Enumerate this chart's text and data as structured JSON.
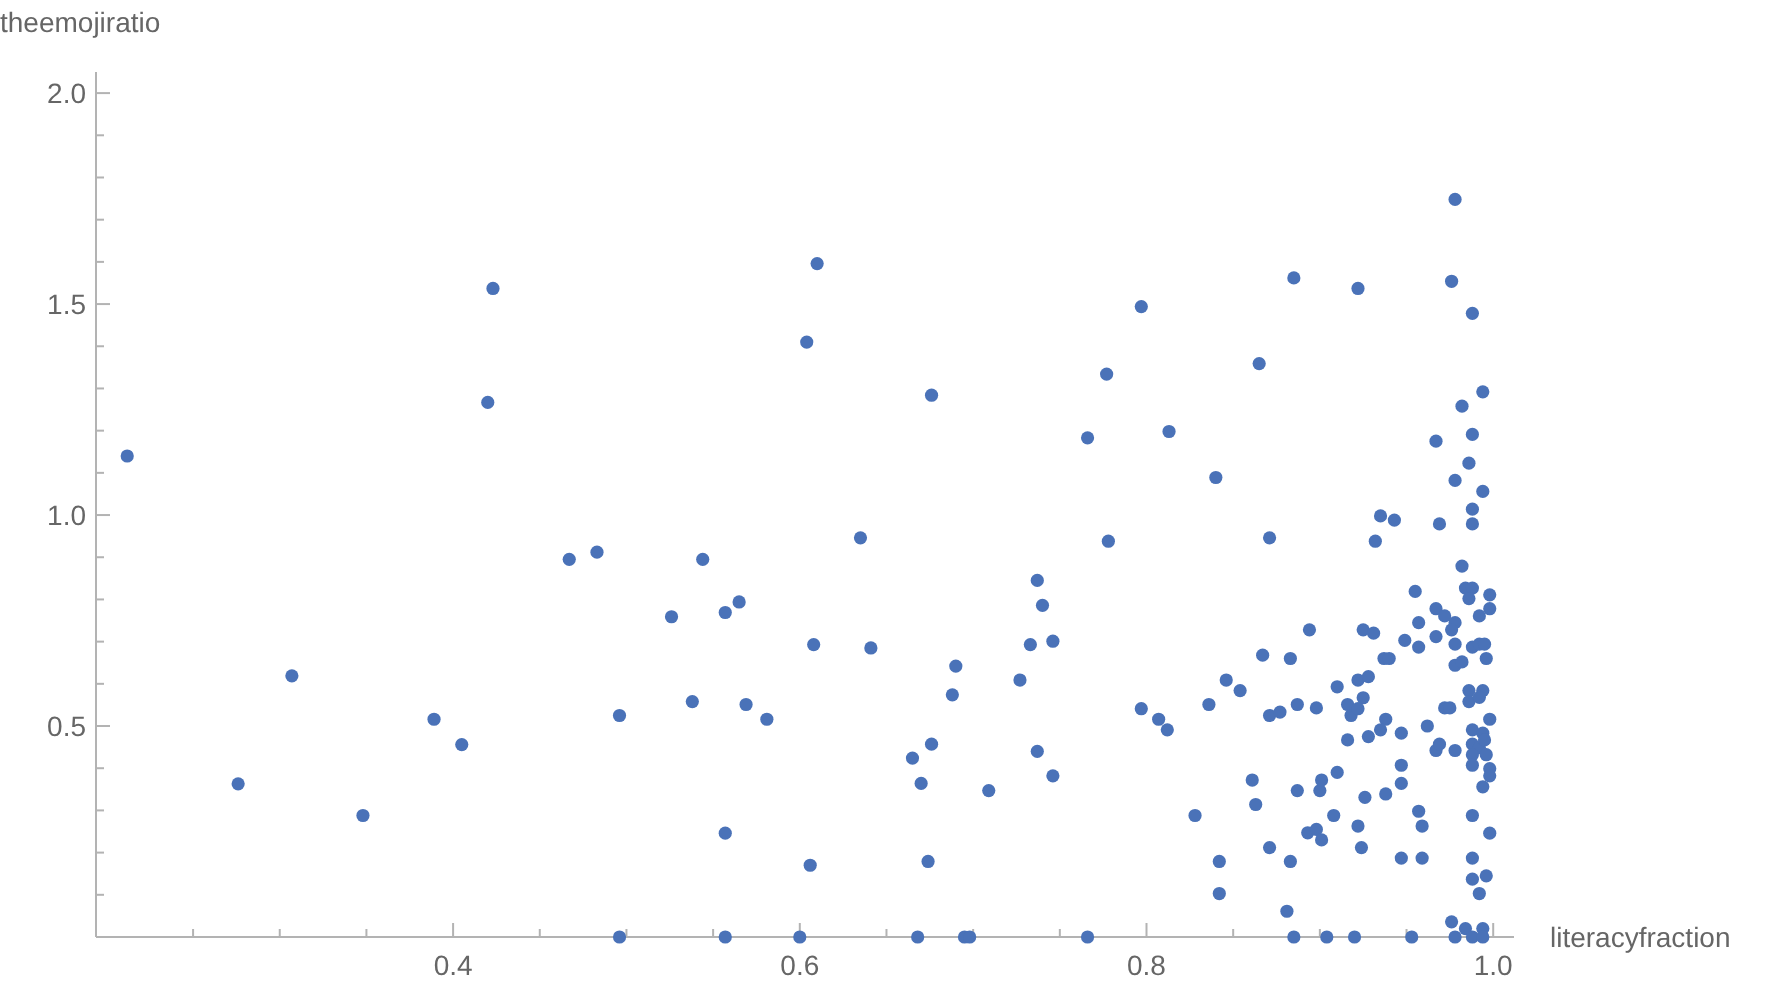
{
  "chart_data": {
    "type": "scatter",
    "xlabel": "literacyfraction",
    "ylabel": "theemojiratio",
    "marker": "circle",
    "grid": false,
    "xlim": [
      0.194,
      1.012
    ],
    "ylim": [
      0,
      2.05
    ],
    "xticks": [
      {
        "value": 0.25,
        "label": null
      },
      {
        "value": 0.3,
        "label": null
      },
      {
        "value": 0.35,
        "label": null
      },
      0.4,
      {
        "value": 0.45,
        "label": null
      },
      {
        "value": 0.5,
        "label": null
      },
      {
        "value": 0.55,
        "label": null
      },
      0.6,
      {
        "value": 0.65,
        "label": null
      },
      {
        "value": 0.7,
        "label": null
      },
      {
        "value": 0.75,
        "label": null
      },
      0.8,
      {
        "value": 0.85,
        "label": null
      },
      {
        "value": 0.9,
        "label": null
      },
      {
        "value": 0.95,
        "label": null
      },
      {
        "value": 1.0,
        "label": "1.0"
      }
    ],
    "yticks": [
      {
        "value": 0.1,
        "label": null
      },
      {
        "value": 0.2,
        "label": null
      },
      {
        "value": 0.3,
        "label": null
      },
      {
        "value": 0.4,
        "label": null
      },
      0.5,
      {
        "value": 0.6,
        "label": null
      },
      {
        "value": 0.7,
        "label": null
      },
      {
        "value": 0.8,
        "label": null
      },
      {
        "value": 0.9,
        "label": null
      },
      {
        "value": 1.0,
        "label": "1.0"
      },
      {
        "value": 1.1,
        "label": null
      },
      {
        "value": 1.2,
        "label": null
      },
      {
        "value": 1.3,
        "label": null
      },
      {
        "value": 1.4,
        "label": null
      },
      1.5,
      {
        "value": 1.6,
        "label": null
      },
      {
        "value": 1.7,
        "label": null
      },
      {
        "value": 1.8,
        "label": null
      },
      {
        "value": 1.9,
        "label": null
      },
      {
        "value": 2.0,
        "label": "2.0"
      }
    ],
    "series": [
      {
        "color": "#4a72b8",
        "x": [
          0.212,
          0.276,
          0.307,
          0.348,
          0.389,
          0.405,
          0.42,
          0.423,
          0.467,
          0.483,
          0.496,
          0.496,
          0.526,
          0.61,
          0.604,
          0.676,
          0.635,
          0.544,
          0.557,
          0.565,
          0.608,
          0.641,
          0.538,
          0.569,
          0.581,
          0.557,
          0.606,
          0.557,
          0.6,
          0.668,
          0.695,
          0.698,
          0.766,
          0.69,
          0.688,
          0.665,
          0.676,
          0.67,
          0.674,
          0.709,
          0.727,
          0.733,
          0.737,
          0.74,
          0.746,
          0.737,
          0.746,
          0.766,
          0.777,
          0.778,
          0.797,
          0.813,
          0.797,
          0.807,
          0.812,
          0.978,
          0.885,
          0.922,
          0.976,
          0.988,
          0.865,
          0.994,
          0.982,
          0.988,
          0.967,
          0.84,
          0.986,
          0.978,
          0.994,
          0.988,
          0.969,
          0.988,
          0.935,
          0.943,
          0.871,
          0.932,
          0.982,
          0.955,
          0.984,
          0.988,
          0.998,
          0.998,
          0.967,
          0.972,
          0.978,
          0.976,
          0.957,
          0.992,
          0.986,
          0.894,
          0.925,
          0.931,
          0.949,
          0.967,
          0.957,
          0.978,
          0.988,
          0.992,
          0.995,
          0.867,
          0.883,
          0.937,
          0.94,
          0.978,
          0.982,
          0.996,
          0.846,
          0.854,
          0.91,
          0.922,
          0.928,
          0.836,
          0.871,
          0.877,
          0.887,
          0.898,
          0.916,
          0.925,
          0.918,
          0.922,
          0.938,
          0.935,
          0.928,
          0.916,
          0.947,
          0.962,
          0.972,
          0.975,
          0.986,
          0.994,
          0.986,
          0.992,
          0.998,
          0.988,
          0.994,
          0.988,
          0.992,
          0.995,
          0.967,
          0.978,
          0.969,
          0.988,
          0.996,
          0.988,
          0.998,
          0.998,
          0.994,
          0.861,
          0.863,
          0.828,
          0.887,
          0.9,
          0.901,
          0.91,
          0.926,
          0.938,
          0.947,
          0.947,
          0.908,
          0.893,
          0.898,
          0.901,
          0.922,
          0.924,
          0.957,
          0.959,
          0.871,
          0.883,
          0.947,
          0.959,
          0.988,
          0.998,
          0.988,
          0.996,
          0.988,
          0.992,
          0.842,
          0.842,
          0.881,
          0.976,
          0.984,
          0.994,
          0.885,
          0.904,
          0.92,
          0.953,
          0.978,
          0.988,
          0.994
        ],
        "values": [
          1.14,
          0.363,
          0.619,
          0.288,
          0.516,
          0.456,
          1.267,
          1.537,
          0.895,
          0.912,
          0.525,
          0,
          0.759,
          1.596,
          1.41,
          1.284,
          0.946,
          0.895,
          0.769,
          0.794,
          0.693,
          0.685,
          0.558,
          0.551,
          0.516,
          0.246,
          0.17,
          0,
          0,
          0,
          0,
          0,
          0,
          0.642,
          0.574,
          0.424,
          0.457,
          0.364,
          0.179,
          0.347,
          0.609,
          0.693,
          0.845,
          0.786,
          0.701,
          0.44,
          0.382,
          1.183,
          1.334,
          0.938,
          1.494,
          1.198,
          0.541,
          0.516,
          0.491,
          1.748,
          1.562,
          1.537,
          1.554,
          1.478,
          1.359,
          1.292,
          1.258,
          1.191,
          1.175,
          1.089,
          1.123,
          1.082,
          1.056,
          1.014,
          0.979,
          0.979,
          0.998,
          0.988,
          0.946,
          0.938,
          0.879,
          0.819,
          0.827,
          0.827,
          0.811,
          0.778,
          0.778,
          0.761,
          0.745,
          0.728,
          0.745,
          0.761,
          0.802,
          0.728,
          0.728,
          0.72,
          0.703,
          0.712,
          0.687,
          0.694,
          0.687,
          0.694,
          0.694,
          0.668,
          0.66,
          0.66,
          0.66,
          0.644,
          0.652,
          0.66,
          0.609,
          0.584,
          0.593,
          0.609,
          0.617,
          0.551,
          0.525,
          0.533,
          0.551,
          0.543,
          0.551,
          0.567,
          0.525,
          0.541,
          0.516,
          0.491,
          0.475,
          0.467,
          0.483,
          0.5,
          0.543,
          0.543,
          0.584,
          0.584,
          0.558,
          0.568,
          0.516,
          0.491,
          0.483,
          0.457,
          0.449,
          0.467,
          0.442,
          0.442,
          0.457,
          0.432,
          0.432,
          0.407,
          0.399,
          0.382,
          0.356,
          0.372,
          0.314,
          0.288,
          0.347,
          0.347,
          0.372,
          0.39,
          0.331,
          0.339,
          0.364,
          0.407,
          0.288,
          0.247,
          0.255,
          0.23,
          0.263,
          0.212,
          0.298,
          0.263,
          0.212,
          0.179,
          0.187,
          0.187,
          0.288,
          0.246,
          0.187,
          0.145,
          0.137,
          0.103,
          0.179,
          0.103,
          0.061,
          0.036,
          0.02,
          0.02,
          0,
          0,
          0,
          0,
          0,
          0,
          0
        ]
      }
    ]
  }
}
